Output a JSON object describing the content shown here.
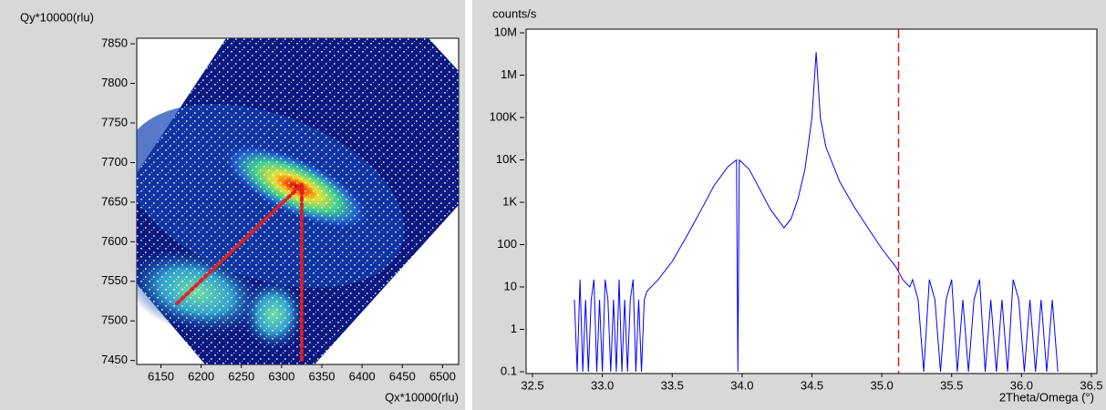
{
  "chart_data": [
    {
      "type": "map",
      "y_label": "Qy*10000(rlu)",
      "x_label": "Qx*10000(rlu)",
      "xlim": [
        6120,
        6520
      ],
      "ylim": [
        7445,
        7857
      ],
      "xticks": [
        6150,
        6200,
        6250,
        6300,
        6350,
        6400,
        6450,
        6500
      ],
      "yticks": [
        7450,
        7500,
        7550,
        7600,
        7650,
        7700,
        7750,
        7800,
        7850
      ],
      "series": [
        {
          "color": "#e02020",
          "x": [
            6170,
            6325,
            6325
          ],
          "values": [
            7522,
            7672,
            7450
          ]
        }
      ]
    },
    {
      "type": "line",
      "log_y": true,
      "y_label": "counts/s",
      "x_label": "2Theta/Omega (°)",
      "xlim": [
        32.5,
        36.5
      ],
      "ylim": [
        0.1,
        10000000
      ],
      "xticks": [
        32.5,
        {
          "value": 33,
          "label": "33.0"
        },
        33.5,
        {
          "value": 34,
          "label": "34.0"
        },
        34.5,
        {
          "value": 35,
          "label": "35.0"
        },
        35.5,
        {
          "value": 36,
          "label": "36.0"
        },
        36.5
      ],
      "yticks": [
        0.1,
        1,
        10,
        100,
        {
          "value": 1000,
          "label": "1K"
        },
        {
          "value": 10000,
          "label": "10K"
        },
        {
          "value": 100000,
          "label": "100K"
        },
        {
          "value": 1000000,
          "label": "1M"
        },
        {
          "value": 10000000,
          "label": "10M"
        }
      ],
      "vline": {
        "x": 35.12,
        "color": "#d02020"
      },
      "series": [
        {
          "color": "#0000ff",
          "x": [
            32.8,
            32.82,
            32.84,
            32.86,
            32.88,
            32.9,
            32.92,
            32.94,
            32.96,
            32.98,
            33.0,
            33.02,
            33.04,
            33.06,
            33.08,
            33.1,
            33.12,
            33.14,
            33.16,
            33.18,
            33.2,
            33.22,
            33.24,
            33.26,
            33.28,
            33.3,
            33.32,
            33.4,
            33.5,
            33.6,
            33.7,
            33.8,
            33.9,
            33.96,
            33.97,
            33.98,
            34.05,
            34.1,
            34.2,
            34.3,
            34.35,
            34.4,
            34.45,
            34.5,
            34.53,
            34.56,
            34.6,
            34.7,
            34.8,
            34.9,
            35.0,
            35.1,
            35.15,
            35.2,
            35.22,
            35.26,
            35.3,
            35.34,
            35.38,
            35.42,
            35.46,
            35.5,
            35.54,
            35.58,
            35.62,
            35.66,
            35.7,
            35.74,
            35.78,
            35.82,
            35.86,
            35.9,
            35.94,
            35.98,
            36.02,
            36.06,
            36.1,
            36.14,
            36.18,
            36.22,
            36.26
          ],
          "values": [
            5,
            0.1,
            15,
            0.1,
            5,
            0.1,
            5,
            15,
            0.1,
            5,
            0.1,
            15,
            5,
            0.1,
            5,
            0.1,
            15,
            0.1,
            5,
            0.1,
            5,
            15,
            0.1,
            5,
            0.1,
            5,
            8,
            15,
            40,
            150,
            600,
            2500,
            7000,
            10000,
            0.1,
            10000,
            6000,
            3000,
            700,
            250,
            400,
            1200,
            6000,
            100000,
            3500000,
            100000,
            20000,
            3000,
            800,
            250,
            80,
            30,
            15,
            10,
            15,
            5,
            0.1,
            15,
            5,
            0.1,
            5,
            15,
            0.1,
            5,
            0.1,
            5,
            15,
            0.1,
            5,
            0.1,
            5,
            0.1,
            15,
            5,
            0.1,
            5,
            0.1,
            5,
            0.1,
            5,
            0.1
          ]
        }
      ]
    }
  ]
}
